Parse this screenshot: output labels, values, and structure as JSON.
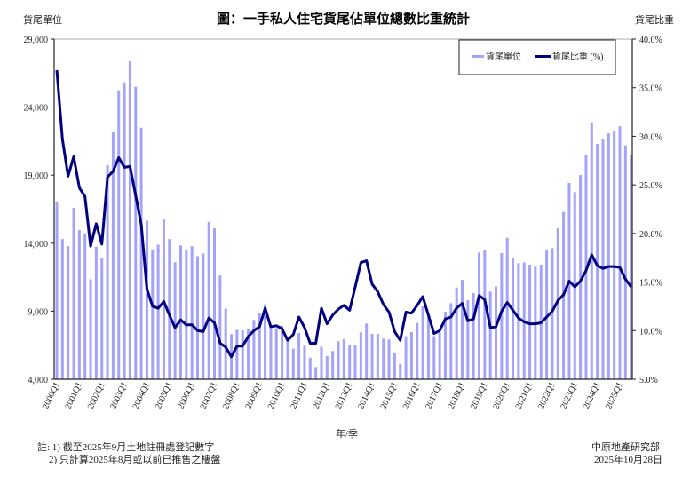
{
  "title": "圖：一手私人住宅貨尾佔單位總數比重統計",
  "notes": [
    "註: 1) 截至2025年9月土地註冊處登記數字",
    "2) 只計算2025年8月或以前已推售之樓盤"
  ],
  "source": "中原地產研究部",
  "date": "2025年10月28日",
  "colors": {
    "bars": "#a3a3fb",
    "line": "#000080"
  },
  "chart_data": {
    "type": "bar+line",
    "title": "圖：一手私人住宅貨尾佔單位總數比重統計",
    "xlabel": "年/季",
    "ylabel_left": "貨尾單位",
    "ylabel_right": "貨尾比重",
    "ylim_left": [
      4000,
      29000
    ],
    "ylim_right": [
      5.0,
      40.0
    ],
    "yticks_left": [
      "4,000",
      "9,000",
      "14,000",
      "19,000",
      "24,000",
      "29,000"
    ],
    "yticks_right": [
      "5.0%",
      "10.0%",
      "15.0%",
      "20.0%",
      "25.0%",
      "30.0%",
      "35.0%",
      "40.0%"
    ],
    "xtick_labels": [
      "2000Q1",
      "2001Q1",
      "2002Q1",
      "2003Q1",
      "2004Q1",
      "2005Q1",
      "2006Q1",
      "2007Q1",
      "2008Q1",
      "2009Q1",
      "2010Q1",
      "2011Q1",
      "2012Q1",
      "2013Q1",
      "2014Q1",
      "2015Q1",
      "2016Q1",
      "2017Q1",
      "2018Q1",
      "2019Q1",
      "2020Q1",
      "2021Q1",
      "2022Q1",
      "2023Q1",
      "2024Q1",
      "2025Q1"
    ],
    "first_quarter": "2000Q1",
    "legend": {
      "position": "top-right",
      "entries": [
        "貨尾單位",
        "貨尾比重 (%)"
      ]
    },
    "series": [
      {
        "name": "貨尾單位",
        "type": "bar",
        "axis": "left",
        "values": [
          17065,
          14300,
          13780,
          16590,
          14970,
          14730,
          11340,
          13730,
          12900,
          19740,
          22140,
          25230,
          25820,
          27370,
          25490,
          22490,
          15650,
          13540,
          13890,
          15740,
          14300,
          12600,
          13840,
          13540,
          13780,
          13040,
          13250,
          15560,
          15100,
          11620,
          9180,
          7310,
          7630,
          7590,
          7680,
          8350,
          8850,
          9500,
          7760,
          7760,
          7920,
          6790,
          6240,
          7390,
          6460,
          5590,
          4890,
          6390,
          5700,
          6070,
          6790,
          6940,
          6500,
          6500,
          7440,
          8090,
          7330,
          7330,
          6980,
          6920,
          5940,
          5130,
          7160,
          7460,
          8130,
          9350,
          8570,
          7160,
          7440,
          8960,
          9590,
          10750,
          11310,
          9810,
          10330,
          13310,
          13530,
          10440,
          10810,
          13270,
          14400,
          12940,
          12530,
          12580,
          12420,
          12270,
          12420,
          13530,
          13640,
          15100,
          16290,
          18430,
          17750,
          19010,
          20450,
          22880,
          21300,
          21620,
          22080,
          22280,
          22600,
          21190,
          20450
        ]
      },
      {
        "name": "貨尾比重 (%)",
        "type": "line",
        "axis": "right",
        "values": [
          36.8,
          29.7,
          25.9,
          27.9,
          24.7,
          23.8,
          18.7,
          21.0,
          18.9,
          25.8,
          26.4,
          27.8,
          26.8,
          26.9,
          23.9,
          20.9,
          14.3,
          12.5,
          12.3,
          13.0,
          11.6,
          10.3,
          11.1,
          10.6,
          10.6,
          10.0,
          9.9,
          11.3,
          10.8,
          8.7,
          8.3,
          7.3,
          8.4,
          8.4,
          9.4,
          10.0,
          10.4,
          12.3,
          10.4,
          10.5,
          10.2,
          9.0,
          9.6,
          11.4,
          10.3,
          8.7,
          8.7,
          12.3,
          10.7,
          11.6,
          12.2,
          12.6,
          12.1,
          14.5,
          17.0,
          17.2,
          14.8,
          14.0,
          12.7,
          11.9,
          9.9,
          9.0,
          11.9,
          11.8,
          12.6,
          13.5,
          11.6,
          9.7,
          10.0,
          11.2,
          11.4,
          12.3,
          12.8,
          11.0,
          11.2,
          13.6,
          13.2,
          10.3,
          10.4,
          12.0,
          12.9,
          12.1,
          11.3,
          10.9,
          10.7,
          10.7,
          10.8,
          11.4,
          12.0,
          13.1,
          13.7,
          15.1,
          14.5,
          15.1,
          16.2,
          17.8,
          16.7,
          16.4,
          16.6,
          16.6,
          16.5,
          15.3,
          14.5
        ]
      }
    ]
  }
}
